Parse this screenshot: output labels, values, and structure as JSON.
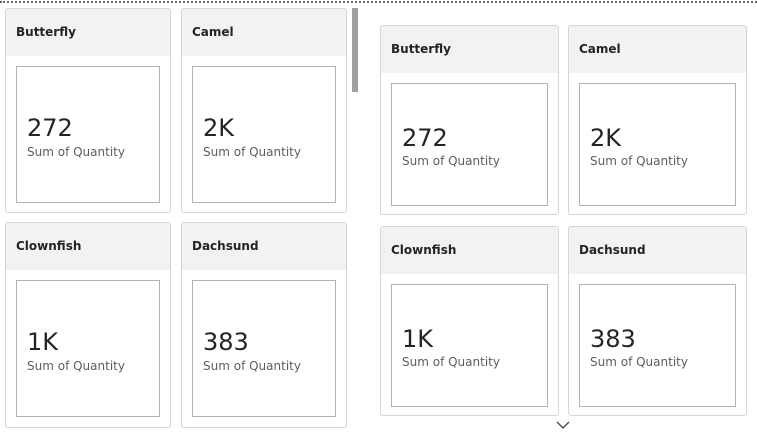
{
  "panels": [
    {
      "cards": [
        {
          "title": "Butterfly",
          "value": "272",
          "label": "Sum of Quantity"
        },
        {
          "title": "Camel",
          "value": "2K",
          "label": "Sum of Quantity"
        },
        {
          "title": "Clownfish",
          "value": "1K",
          "label": "Sum of Quantity"
        },
        {
          "title": "Dachsund",
          "value": "383",
          "label": "Sum of Quantity"
        }
      ]
    },
    {
      "cards": [
        {
          "title": "Butterfly",
          "value": "272",
          "label": "Sum of Quantity"
        },
        {
          "title": "Camel",
          "value": "2K",
          "label": "Sum of Quantity"
        },
        {
          "title": "Clownfish",
          "value": "1K",
          "label": "Sum of Quantity"
        },
        {
          "title": "Dachsund",
          "value": "383",
          "label": "Sum of Quantity"
        }
      ]
    }
  ]
}
